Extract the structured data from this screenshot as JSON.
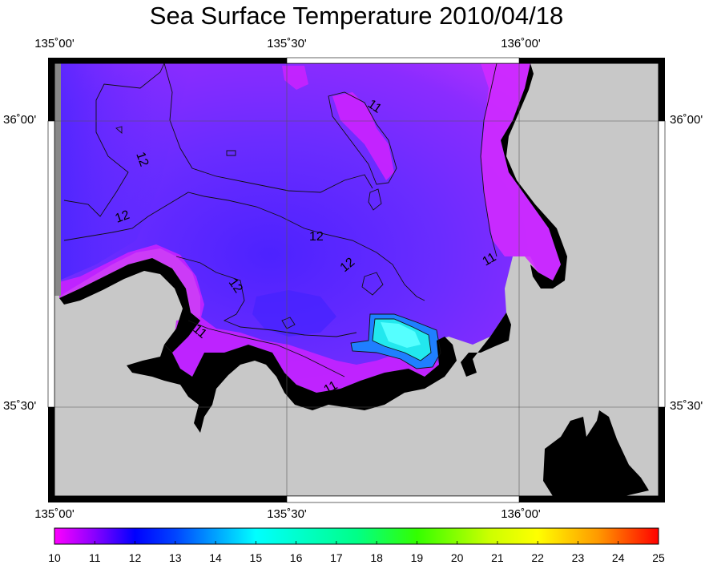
{
  "title": "Sea Surface Temperature 2010/04/18",
  "lon_ticks": [
    "135˚00'",
    "135˚30'",
    "136˚00'"
  ],
  "lat_ticks": [
    "36˚00'",
    "35˚30'"
  ],
  "colorbar": {
    "min": 10,
    "max": 25,
    "labels": [
      "10",
      "11",
      "12",
      "13",
      "14",
      "15",
      "16",
      "17",
      "18",
      "19",
      "20",
      "21",
      "22",
      "23",
      "24",
      "25"
    ],
    "colors": [
      "#ff00ff",
      "#6600ff",
      "#0000ff",
      "#00ffff",
      "#00ff00",
      "#ffff00",
      "#ff8800",
      "#ff0000"
    ]
  },
  "contours": {
    "label_12_a": "12",
    "label_12_b": "12",
    "label_12_c": "12",
    "label_12_d": "12",
    "label_12_e": "12",
    "label_11_a": "11",
    "label_11_b": "11",
    "label_11_c": "11",
    "label_11_d": "11"
  },
  "colors": {
    "land": "#c8c8c8",
    "coast": "#000000",
    "sea_warm": "#cc33ff",
    "sea_cool": "#6633ff",
    "frame": "#000000"
  }
}
